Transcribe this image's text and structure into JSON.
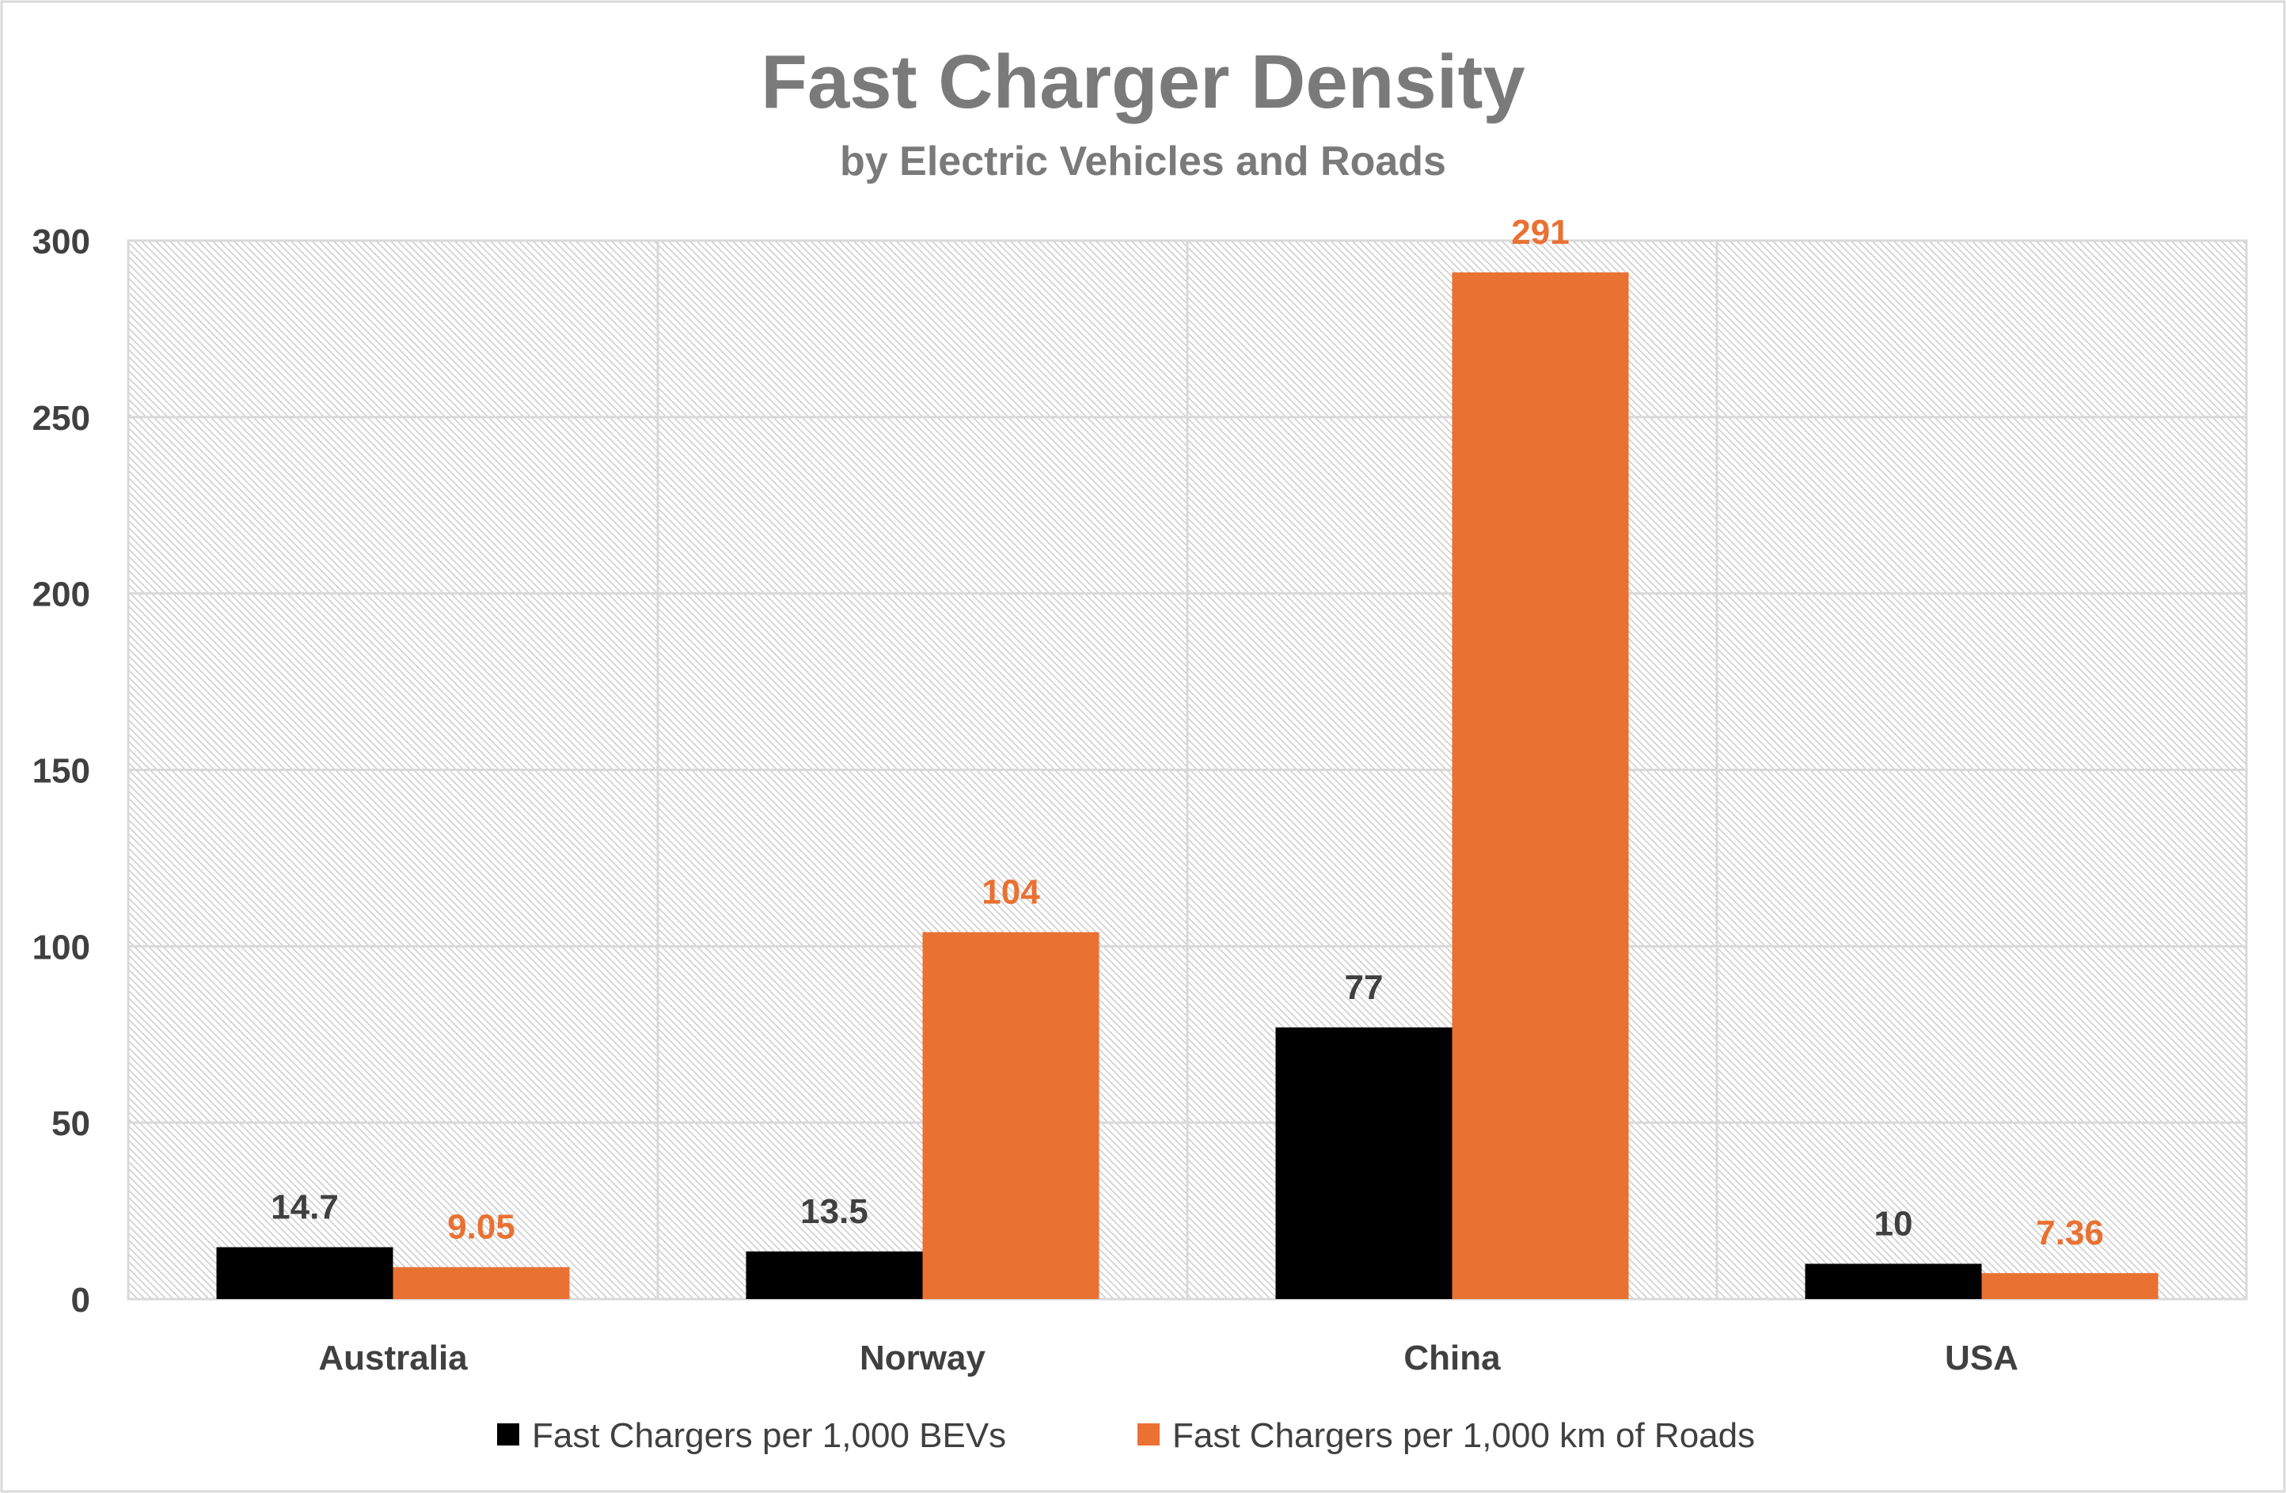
{
  "chart_data": {
    "type": "bar",
    "title": "Fast Charger Density",
    "subtitle": "by Electric Vehicles and Roads",
    "categories": [
      "Australia",
      "Norway",
      "China",
      "USA"
    ],
    "series": [
      {
        "name": "Fast Chargers per 1,000 BEVs",
        "values": [
          14.7,
          13.5,
          77,
          10
        ],
        "color": "#000000",
        "label_color": "#404040"
      },
      {
        "name": "Fast Chargers per 1,000 km of Roads",
        "values": [
          9.05,
          104,
          291,
          7.36
        ],
        "color": "#E97132",
        "label_color": "#E97132"
      }
    ],
    "xlabel": "",
    "ylabel": "",
    "ylim": [
      0,
      300
    ],
    "yticks": [
      0,
      50,
      100,
      150,
      200,
      250,
      300
    ],
    "grid": true,
    "legend_position": "bottom",
    "plot_background": "diagonal hatch"
  }
}
